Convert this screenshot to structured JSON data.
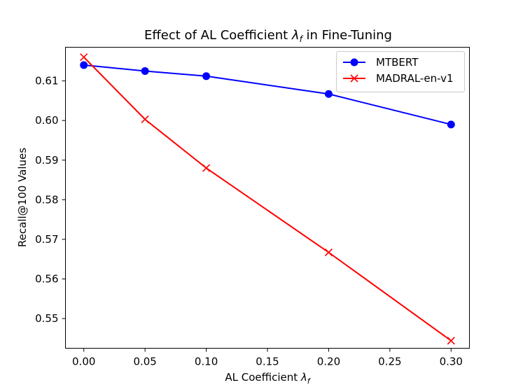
{
  "chart_data": {
    "type": "line",
    "title_prefix": "Effect of AL Coefficient ",
    "title_symbol": "λ",
    "title_subscript": "f",
    "title_suffix": " in Fine-Tuning",
    "xlabel_prefix": "AL Coefficient ",
    "xlabel_symbol": "λ",
    "xlabel_subscript": "f",
    "ylabel": "Recall@100 Values",
    "x": [
      0.0,
      0.05,
      0.1,
      0.2,
      0.3
    ],
    "xlim": [
      -0.015,
      0.315
    ],
    "ylim": [
      0.5425,
      0.6185
    ],
    "xticks": [
      0.0,
      0.05,
      0.1,
      0.15,
      0.2,
      0.25,
      0.3
    ],
    "xtick_labels": [
      "0.00",
      "0.05",
      "0.10",
      "0.15",
      "0.20",
      "0.25",
      "0.30"
    ],
    "yticks": [
      0.55,
      0.56,
      0.57,
      0.58,
      0.59,
      0.6,
      0.61
    ],
    "ytick_labels": [
      "0.55",
      "0.56",
      "0.57",
      "0.58",
      "0.59",
      "0.60",
      "0.61"
    ],
    "grid": false,
    "legend_position": "top-right",
    "series": [
      {
        "name": "MTBERT",
        "color": "#0000ff",
        "marker": "circle",
        "values": [
          0.614,
          0.6125,
          0.6112,
          0.6067,
          0.599
        ]
      },
      {
        "name": "MADRAL-en-v1",
        "color": "#ff0000",
        "marker": "x",
        "values": [
          0.616,
          0.6003,
          0.588,
          0.5667,
          0.5444
        ]
      }
    ]
  }
}
